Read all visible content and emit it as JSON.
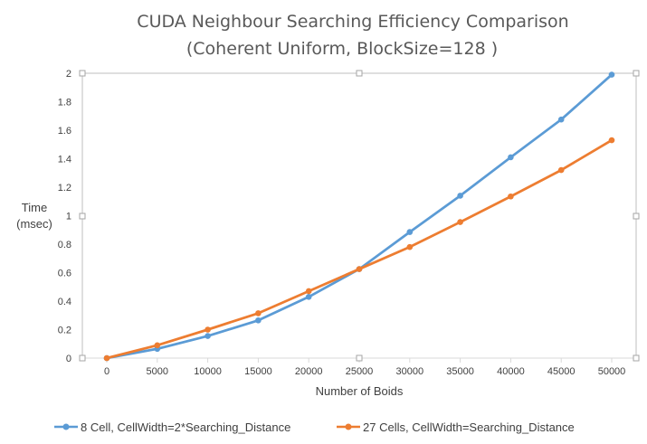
{
  "chart_data": {
    "type": "line",
    "title": [
      "CUDA Neighbour Searching Efficiency Comparison",
      "(Coherent Uniform, BlockSize=128 )"
    ],
    "xlabel": "Number of Boids",
    "ylabel": [
      "Time",
      "(msec)"
    ],
    "categories": [
      "0",
      "5000",
      "10000",
      "15000",
      "20000",
      "25000",
      "30000",
      "35000",
      "40000",
      "45000",
      "50000"
    ],
    "y_ticks": [
      "0",
      "0.2",
      "0.4",
      "0.6",
      "0.8",
      "1",
      "1.2",
      "1.4",
      "1.6",
      "1.8",
      "2"
    ],
    "ylim": [
      0,
      2
    ],
    "grid": false,
    "legend_position": "bottom",
    "series": [
      {
        "name": "8 Cell, CellWidth=2*Searching_Distance",
        "color": "#5b9bd5",
        "values": [
          0,
          0.065,
          0.155,
          0.265,
          0.43,
          0.625,
          0.885,
          1.14,
          1.41,
          1.675,
          1.99
        ]
      },
      {
        "name": "27 Cells, CellWidth=Searching_Distance",
        "color": "#ed7d31",
        "values": [
          0,
          0.09,
          0.2,
          0.315,
          0.47,
          0.625,
          0.78,
          0.955,
          1.135,
          1.32,
          1.53
        ]
      }
    ]
  }
}
